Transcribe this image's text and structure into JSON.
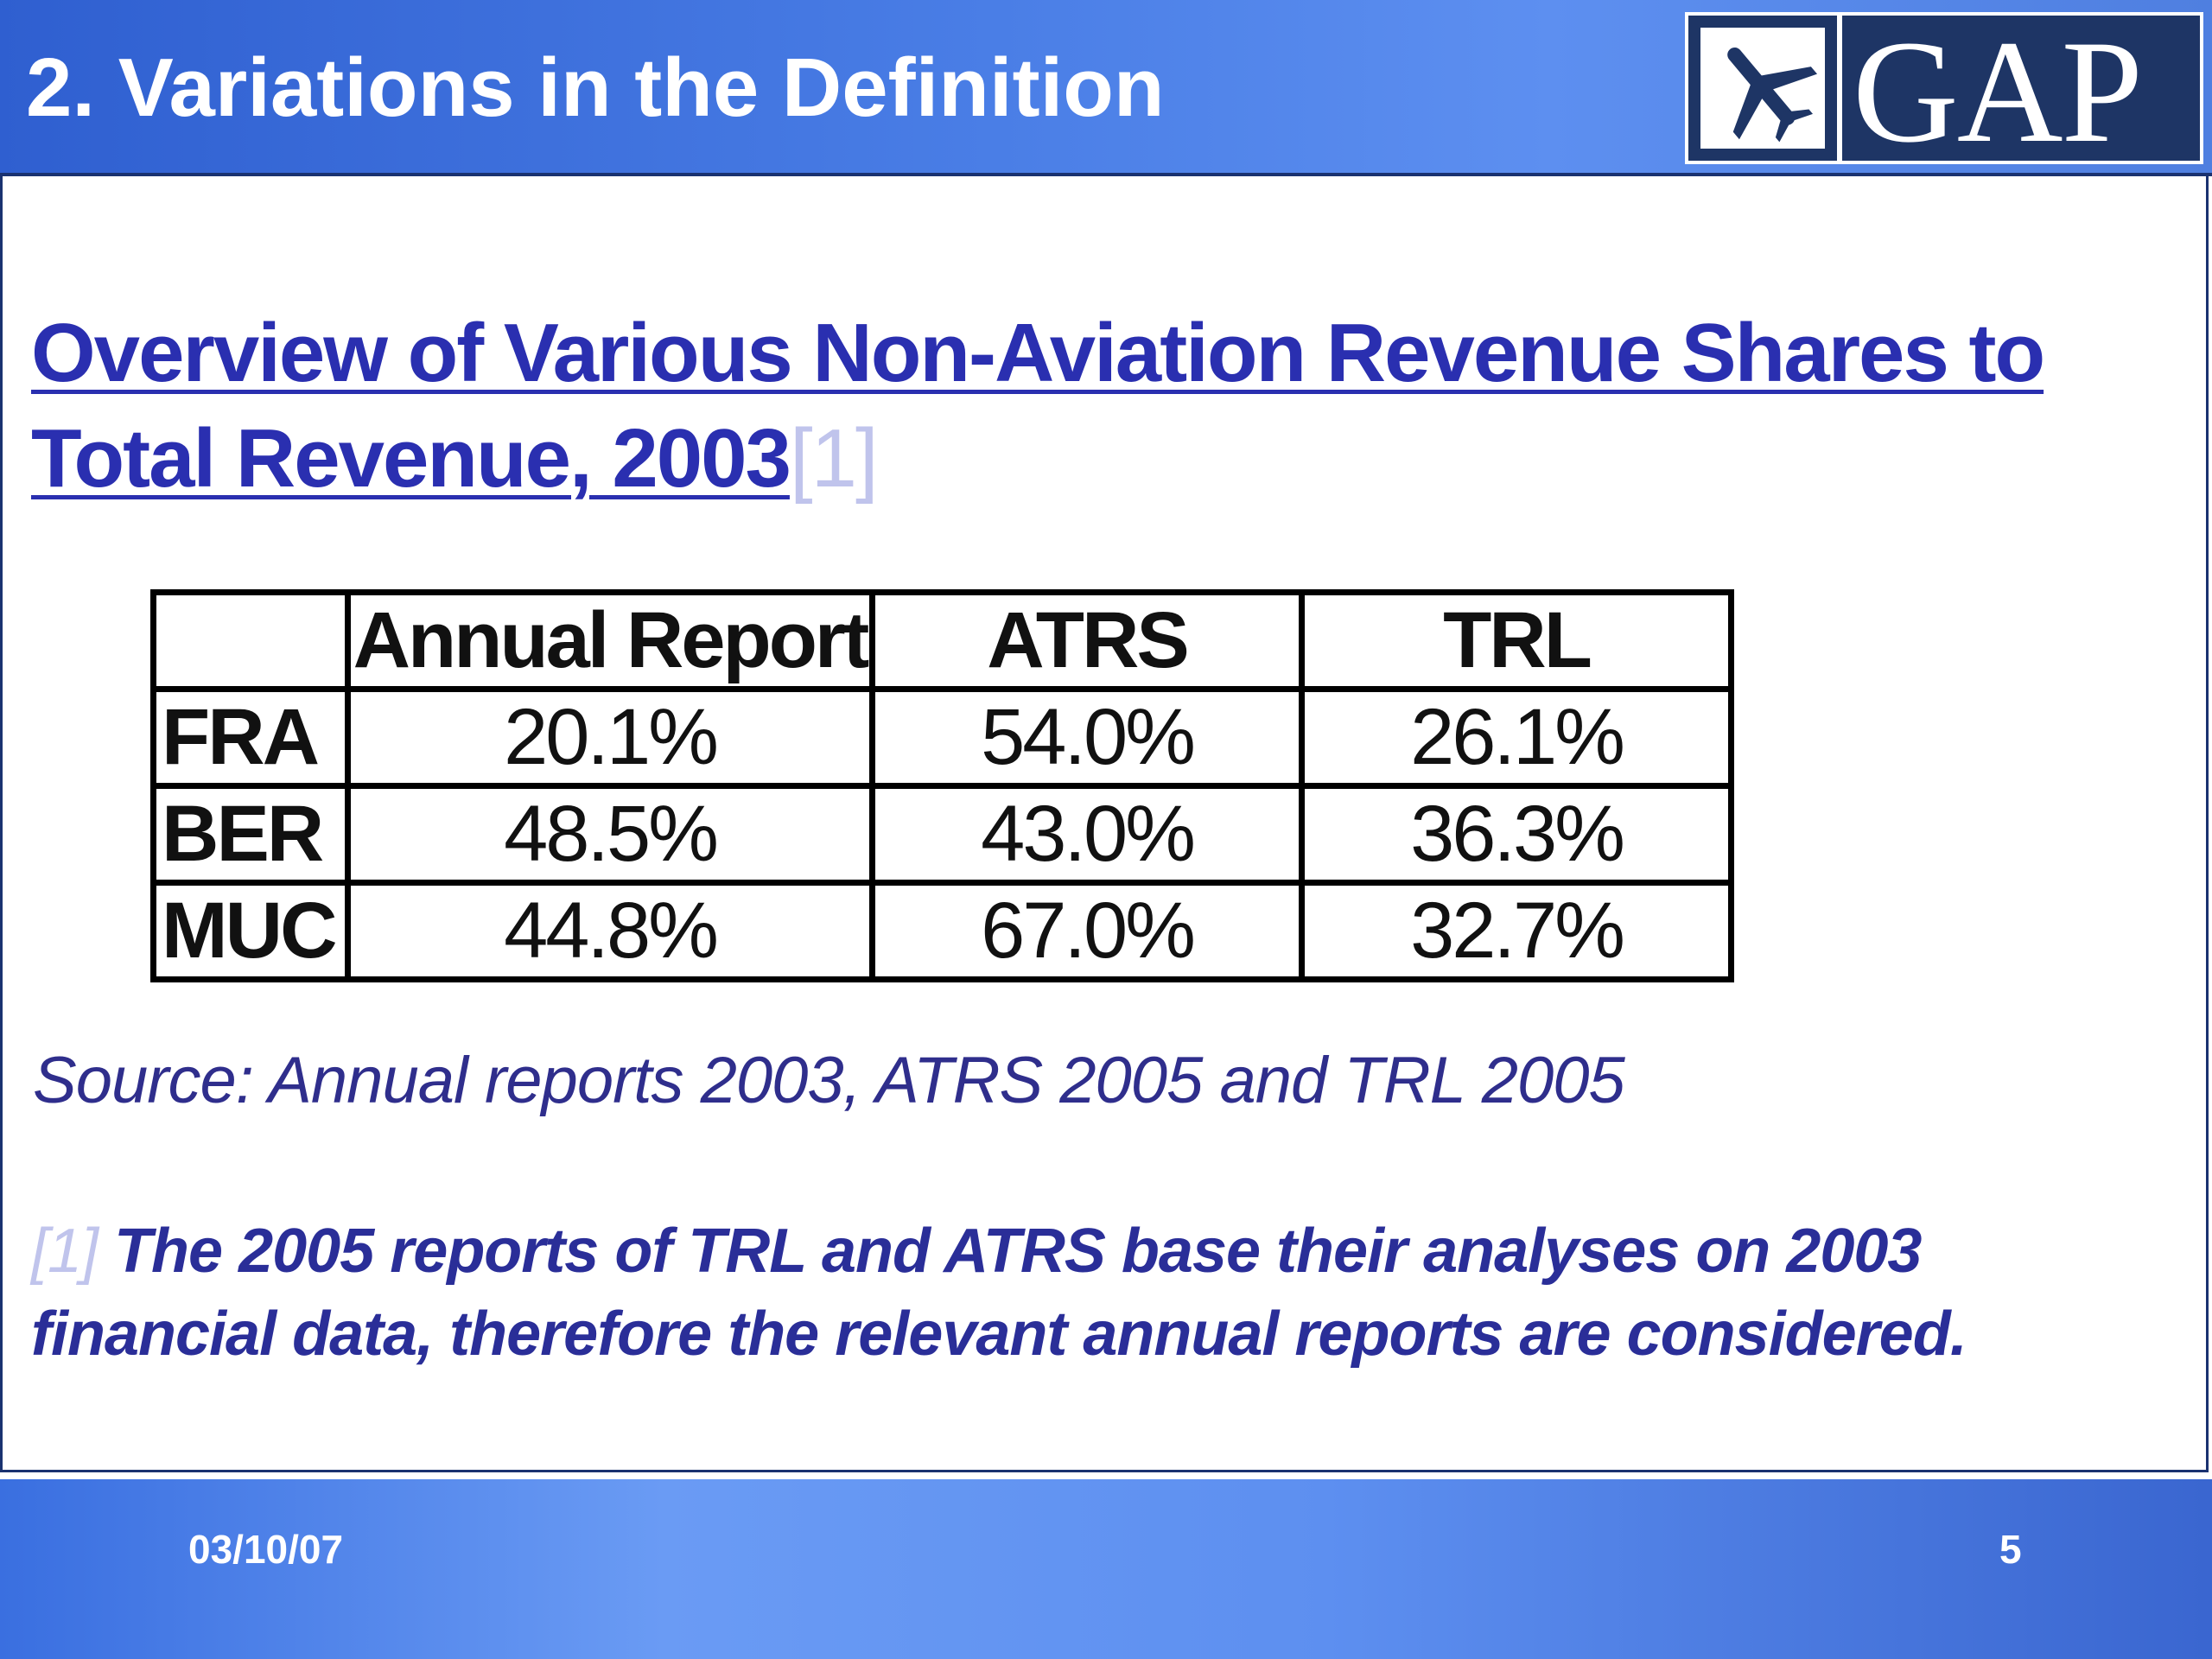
{
  "header": {
    "title": "2.  Variations in the Definition",
    "logo_text": "GAP",
    "logo_icon": "airplane-icon"
  },
  "heading": {
    "text": "Overview of Various Non-Aviation Revenue Shares to Total Revenue, 2003",
    "footnote_ref": "[1]"
  },
  "table": {
    "columns": [
      "",
      "Annual Report",
      "ATRS",
      "TRL"
    ],
    "rows": [
      {
        "label": "FRA",
        "values": [
          "20.1%",
          "54.0%",
          "26.1%"
        ]
      },
      {
        "label": "BER",
        "values": [
          "48.5%",
          "43.0%",
          "36.3%"
        ]
      },
      {
        "label": "MUC",
        "values": [
          "44.8%",
          "67.0%",
          "32.7%"
        ]
      }
    ]
  },
  "source": "Source: Annual reports 2003, ATRS 2005 and TRL 2005",
  "footnote": {
    "marker": "[1]",
    "text": " The 2005 reports of TRL and ATRS base their analyses on 2003 financial data, therefore the relevant annual reports are considered."
  },
  "footer": {
    "date": "03/10/07",
    "page": "5"
  },
  "colors": {
    "header_blue": "#2f5fd0",
    "heading_text": "#2a2fb0",
    "logo_navy": "#1e3565"
  }
}
